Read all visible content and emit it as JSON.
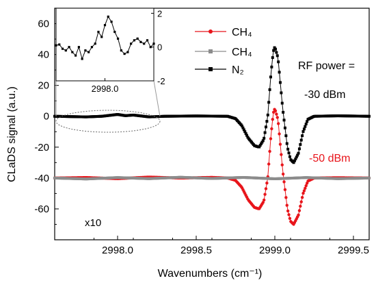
{
  "chart_data": {
    "type": "line",
    "xlabel": "Wavenumbers (cm⁻¹)",
    "ylabel": "CLaDS signal (a.u.)",
    "xlim": [
      2997.6,
      2999.6
    ],
    "ylim": [
      -80,
      70
    ],
    "xticks": [
      2998.0,
      2998.5,
      2999.0,
      2999.5
    ],
    "xtick_labels": [
      "2998.0",
      "2998.5",
      "2999.0",
      "2999.5"
    ],
    "yticks": [
      -60,
      -40,
      -20,
      0,
      20,
      40,
      60
    ],
    "ytick_labels": [
      "-60",
      "-40",
      "-20",
      "0",
      "20",
      "40",
      "60"
    ],
    "legend_position": "top-center",
    "series": [
      {
        "name": "CH₄",
        "color": "#e8151b",
        "marker": "circle",
        "offset": -40,
        "points": [
          [
            2997.6,
            0
          ],
          [
            2997.8,
            0.3
          ],
          [
            2998.0,
            -0.4
          ],
          [
            2998.2,
            0.6
          ],
          [
            2998.4,
            0
          ],
          [
            2998.6,
            0.4
          ],
          [
            2998.7,
            0
          ],
          [
            2998.75,
            -1.5
          ],
          [
            2998.79,
            -6
          ],
          [
            2998.83,
            -14
          ],
          [
            2998.87,
            -19
          ],
          [
            2998.9,
            -20
          ],
          [
            2998.93,
            -15
          ],
          [
            2998.955,
            0
          ],
          [
            2998.975,
            27
          ],
          [
            2998.99,
            42
          ],
          [
            2999.0,
            45
          ],
          [
            2999.02,
            38
          ],
          [
            2999.05,
            5
          ],
          [
            2999.08,
            -20
          ],
          [
            2999.1,
            -28
          ],
          [
            2999.12,
            -30
          ],
          [
            2999.15,
            -24
          ],
          [
            2999.18,
            -10
          ],
          [
            2999.21,
            -2
          ],
          [
            2999.25,
            0
          ],
          [
            2999.4,
            0.2
          ],
          [
            2999.6,
            0
          ]
        ]
      },
      {
        "name": "CH₄",
        "color": "#8c8c8c",
        "marker": "square",
        "offset": -40,
        "points": [
          [
            2997.6,
            0
          ],
          [
            2997.8,
            -0.6
          ],
          [
            2998.0,
            0.3
          ],
          [
            2998.2,
            -0.4
          ],
          [
            2998.4,
            0.5
          ],
          [
            2998.6,
            -0.3
          ],
          [
            2998.8,
            0.4
          ],
          [
            2999.0,
            -0.5
          ],
          [
            2999.2,
            0.3
          ],
          [
            2999.4,
            -0.4
          ],
          [
            2999.6,
            0
          ]
        ]
      },
      {
        "name": "N₂",
        "color": "#000000",
        "marker": "square",
        "offset": 0,
        "points": [
          [
            2997.6,
            0
          ],
          [
            2997.8,
            -0.4
          ],
          [
            2997.9,
            0
          ],
          [
            2998.0,
            1.2
          ],
          [
            2998.05,
            0.4
          ],
          [
            2998.1,
            0.8
          ],
          [
            2998.2,
            -0.4
          ],
          [
            2998.3,
            0
          ],
          [
            2998.5,
            0.2
          ],
          [
            2998.7,
            0
          ],
          [
            2998.75,
            -1.5
          ],
          [
            2998.79,
            -6
          ],
          [
            2998.83,
            -14
          ],
          [
            2998.87,
            -19
          ],
          [
            2998.9,
            -20
          ],
          [
            2998.93,
            -15
          ],
          [
            2998.955,
            0
          ],
          [
            2998.975,
            27
          ],
          [
            2998.99,
            42
          ],
          [
            2999.0,
            45
          ],
          [
            2999.02,
            38
          ],
          [
            2999.05,
            5
          ],
          [
            2999.08,
            -20
          ],
          [
            2999.1,
            -28
          ],
          [
            2999.12,
            -30
          ],
          [
            2999.15,
            -24
          ],
          [
            2999.18,
            -10
          ],
          [
            2999.21,
            -2
          ],
          [
            2999.25,
            0
          ],
          [
            2999.4,
            0.3
          ],
          [
            2999.6,
            0
          ]
        ]
      }
    ],
    "annotations": {
      "rf_power_line1": "RF power =",
      "rf_power_line2": "-30 dBm",
      "rf_power_red": "-50 dBm",
      "scale_note": "x10"
    },
    "inset": {
      "xtick_labels": [
        "2998.0"
      ],
      "right_yticks": [
        -2,
        0,
        2
      ],
      "right_ytick_labels": [
        "-2",
        "0",
        "2"
      ],
      "xlim": [
        2997.7,
        2998.3
      ],
      "ylim": [
        -2,
        2.3
      ],
      "points": [
        [
          2997.7,
          0.1
        ],
        [
          2997.72,
          0.15
        ],
        [
          2997.74,
          -0.1
        ],
        [
          2997.76,
          -0.2
        ],
        [
          2997.78,
          0
        ],
        [
          2997.8,
          -0.3
        ],
        [
          2997.82,
          -0.5
        ],
        [
          2997.84,
          0
        ],
        [
          2997.86,
          -0.7
        ],
        [
          2997.88,
          -0.2
        ],
        [
          2997.9,
          -0.3
        ],
        [
          2997.92,
          0
        ],
        [
          2997.94,
          0.2
        ],
        [
          2997.96,
          0.9
        ],
        [
          2997.98,
          0.6
        ],
        [
          2998.0,
          1.3
        ],
        [
          2998.02,
          1.8
        ],
        [
          2998.04,
          1.5
        ],
        [
          2998.06,
          0.9
        ],
        [
          2998.08,
          0.5
        ],
        [
          2998.1,
          -0.2
        ],
        [
          2998.12,
          -0.4
        ],
        [
          2998.14,
          -0.3
        ],
        [
          2998.16,
          0.2
        ],
        [
          2998.18,
          0.4
        ],
        [
          2998.2,
          0.5
        ],
        [
          2998.22,
          0.3
        ],
        [
          2998.24,
          0.2
        ],
        [
          2998.26,
          0.4
        ],
        [
          2998.28,
          0
        ],
        [
          2998.3,
          0.2
        ]
      ]
    }
  }
}
